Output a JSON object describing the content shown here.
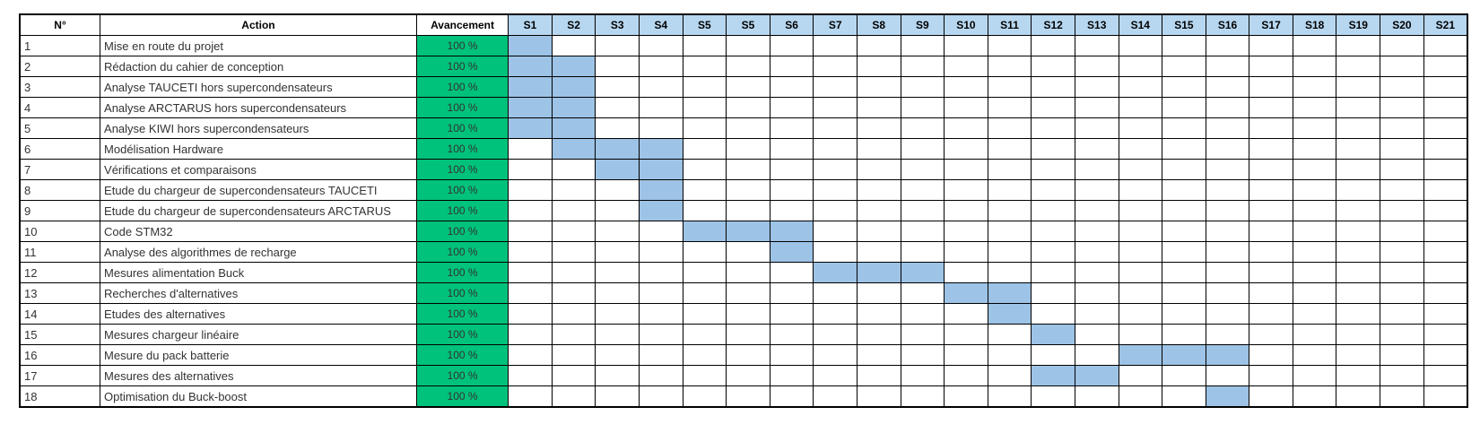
{
  "chart_data": {
    "type": "table",
    "columns": {
      "num": "N°",
      "action": "Action",
      "progress": "Avancement"
    },
    "weeks": [
      "S1",
      "S2",
      "S3",
      "S4",
      "S5",
      "S5",
      "S6",
      "S7",
      "S8",
      "S9",
      "S10",
      "S11",
      "S12",
      "S13",
      "S14",
      "S15",
      "S16",
      "S17",
      "S18",
      "S19",
      "S20",
      "S21"
    ],
    "tasks": [
      {
        "num": "1",
        "action": "Mise en route du projet",
        "progress": "100 %",
        "start": 1,
        "end": 1
      },
      {
        "num": "2",
        "action": "Rédaction du cahier de conception",
        "progress": "100 %",
        "start": 1,
        "end": 2
      },
      {
        "num": "3",
        "action": "Analyse TAUCETI hors supercondensateurs",
        "progress": "100 %",
        "start": 1,
        "end": 2
      },
      {
        "num": "4",
        "action": "Analyse ARCTARUS hors supercondensateurs",
        "progress": "100 %",
        "start": 1,
        "end": 2
      },
      {
        "num": "5",
        "action": "Analyse KIWI hors supercondensateurs",
        "progress": "100 %",
        "start": 1,
        "end": 2
      },
      {
        "num": "6",
        "action": "Modélisation Hardware",
        "progress": "100 %",
        "start": 2,
        "end": 4
      },
      {
        "num": "7",
        "action": "Vérifications et comparaisons",
        "progress": "100 %",
        "start": 3,
        "end": 4
      },
      {
        "num": "8",
        "action": "Etude du chargeur de supercondensateurs TAUCETI",
        "progress": "100 %",
        "start": 4,
        "end": 4
      },
      {
        "num": "9",
        "action": "Etude du chargeur de supercondensateurs ARCTARUS",
        "progress": "100 %",
        "start": 4,
        "end": 4
      },
      {
        "num": "10",
        "action": "Code STM32",
        "progress": "100 %",
        "start": 5,
        "end": 7
      },
      {
        "num": "11",
        "action": "Analyse des algorithmes de recharge",
        "progress": "100 %",
        "start": 7,
        "end": 7
      },
      {
        "num": "12",
        "action": "Mesures alimentation Buck",
        "progress": "100 %",
        "start": 8,
        "end": 10
      },
      {
        "num": "13",
        "action": "Recherches d'alternatives",
        "progress": "100 %",
        "start": 11,
        "end": 12
      },
      {
        "num": "14",
        "action": "Etudes des alternatives",
        "progress": "100 %",
        "start": 12,
        "end": 12
      },
      {
        "num": "15",
        "action": "Mesures chargeur linéaire",
        "progress": "100 %",
        "start": 13,
        "end": 13
      },
      {
        "num": "16",
        "action": "Mesure du pack batterie",
        "progress": "100 %",
        "start": 15,
        "end": 17
      },
      {
        "num": "17",
        "action": "Mesures des alternatives",
        "progress": "100 %",
        "start": 13,
        "end": 14
      },
      {
        "num": "18",
        "action": "Optimisation du Buck-boost",
        "progress": "100 %",
        "start": 17,
        "end": 17
      }
    ],
    "colors": {
      "header_week": "#b7d7f0",
      "bar": "#9dc3e6",
      "progress": "#00c27a"
    }
  }
}
